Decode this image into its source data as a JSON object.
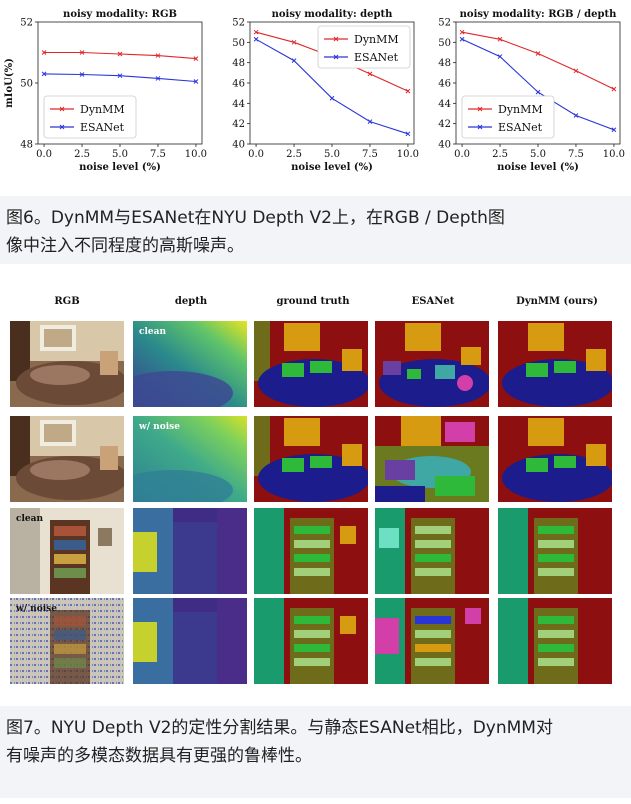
{
  "figure6": {
    "caption_lines": [
      "图6。DynMM与ESANet在NYU Depth V2上，在RGB / Depth图",
      "像中注入不同程度的高斯噪声。"
    ],
    "plots": [
      {
        "title": "noisy modality: RGB",
        "ylabel": "mIoU(%)",
        "xlabel": "noise level (%)",
        "x_ticks": [
          "0.0",
          "2.5",
          "5.0",
          "7.5",
          "10.0"
        ],
        "y_ticks": [
          "48",
          "50",
          "52"
        ],
        "legend": [
          "DynMM",
          "ESANet"
        ]
      },
      {
        "title": "noisy modality: depth",
        "xlabel": "noise level (%)",
        "x_ticks": [
          "0.0",
          "2.5",
          "5.0",
          "7.5",
          "10.0"
        ],
        "y_ticks": [
          "40",
          "42",
          "44",
          "46",
          "48",
          "50",
          "52"
        ],
        "legend": [
          "DynMM",
          "ESANet"
        ]
      },
      {
        "title": "noisy modality: RGB / depth",
        "xlabel": "noise level (%)",
        "x_ticks": [
          "0.0",
          "2.5",
          "5.0",
          "7.5",
          "10.0"
        ],
        "y_ticks": [
          "40",
          "42",
          "44",
          "46",
          "48",
          "50",
          "52"
        ],
        "legend": [
          "DynMM",
          "ESANet"
        ]
      }
    ],
    "colors": {
      "dynmm": "#e0282b",
      "esanet": "#2a35d8"
    }
  },
  "chart_data": [
    {
      "type": "line",
      "title": "noisy modality: RGB",
      "xlabel": "noise level (%)",
      "ylabel": "mIoU(%)",
      "x": [
        0.0,
        2.5,
        5.0,
        7.5,
        10.0
      ],
      "ylim": [
        48,
        52
      ],
      "legend": "bottom-left",
      "series": [
        {
          "name": "DynMM",
          "values": [
            51.0,
            51.0,
            50.95,
            50.9,
            50.8
          ]
        },
        {
          "name": "ESANet",
          "values": [
            50.3,
            50.28,
            50.24,
            50.15,
            50.05
          ]
        }
      ]
    },
    {
      "type": "line",
      "title": "noisy modality: depth",
      "xlabel": "noise level (%)",
      "x": [
        0.0,
        2.5,
        5.0,
        7.5,
        10.0
      ],
      "ylim": [
        40,
        52
      ],
      "legend": "top-right",
      "series": [
        {
          "name": "DynMM",
          "values": [
            51.0,
            50.0,
            48.6,
            46.9,
            45.2
          ]
        },
        {
          "name": "ESANet",
          "values": [
            50.3,
            48.2,
            44.5,
            42.2,
            41.0
          ]
        }
      ]
    },
    {
      "type": "line",
      "title": "noisy modality: RGB / depth",
      "xlabel": "noise level (%)",
      "x": [
        0.0,
        2.5,
        5.0,
        7.5,
        10.0
      ],
      "ylim": [
        40,
        52
      ],
      "legend": "bottom-left",
      "series": [
        {
          "name": "DynMM",
          "values": [
            51.0,
            50.3,
            48.9,
            47.2,
            45.4
          ]
        },
        {
          "name": "ESANet",
          "values": [
            50.3,
            48.6,
            45.1,
            42.8,
            41.4
          ]
        }
      ]
    }
  ],
  "figure7": {
    "column_headers": [
      "RGB",
      "depth",
      "ground truth",
      "ESANet",
      "DynMM (ours)"
    ],
    "row_tags": {
      "row1_depth": "clean",
      "row2_depth": "w/ noise",
      "row3_rgb": "clean",
      "row4_rgb": "w/ noise"
    },
    "caption_lines": [
      "图7。NYU Depth V2的定性分割结果。与静态ESANet相比，DynMM对",
      "有噪声的多模态数据具有更强的鲁棒性。"
    ]
  }
}
